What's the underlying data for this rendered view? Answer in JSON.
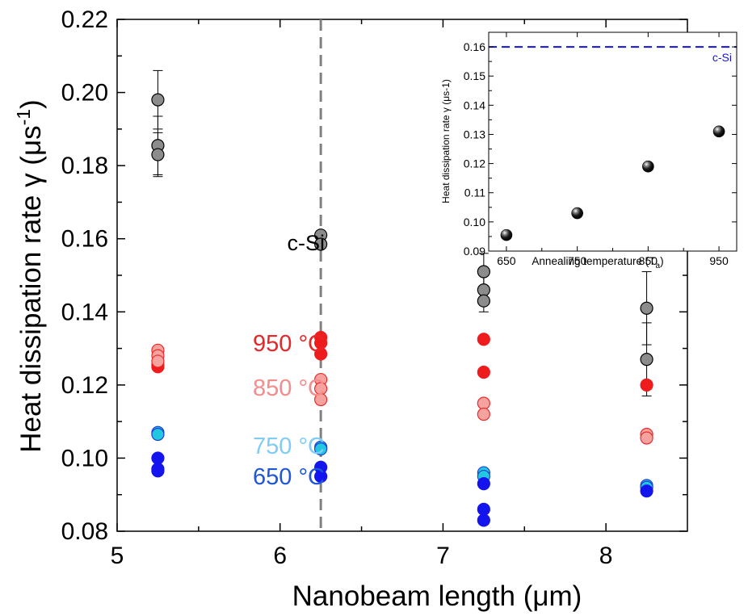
{
  "chart_data": [
    {
      "type": "scatter",
      "title": "",
      "xlabel": "Nanobeam length (μm)",
      "ylabel_main": "Heat dissipation rate γ (μs",
      "ylabel_sup": "-1",
      "ylabel_close": ")",
      "xlim": [
        5.0,
        8.5
      ],
      "ylim": [
        0.08,
        0.22
      ],
      "xticks": [
        5,
        6,
        7,
        8
      ],
      "yticks": [
        "0.08",
        "0.10",
        "0.12",
        "0.14",
        "0.16",
        "0.18",
        "0.20",
        "0.22"
      ],
      "reference_line_x": 6.25,
      "annotations": [
        {
          "text": "c-Si",
          "color": "#000000"
        },
        {
          "text": "950 °C",
          "color": "#e8262a"
        },
        {
          "text": "850 °C",
          "color": "#f48c8c"
        },
        {
          "text": "750 °C",
          "color": "#7fcdf5"
        },
        {
          "text": "650 °C",
          "color": "#1f57d6"
        }
      ],
      "series": [
        {
          "fill": "#8c8c8c",
          "stroke": "#000000",
          "points": [
            [
              5.25,
              0.198
            ],
            [
              5.25,
              0.1855
            ],
            [
              5.25,
              0.183
            ],
            [
              6.25,
              0.161
            ],
            [
              6.25,
              0.1585
            ],
            [
              7.25,
              0.151
            ],
            [
              7.25,
              0.146
            ],
            [
              7.25,
              0.143
            ],
            [
              8.25,
              0.141
            ],
            [
              8.25,
              0.127
            ]
          ],
          "error_bars": [
            [
              5.25,
              0.198,
              0.008
            ],
            [
              5.25,
              0.1855,
              0.008
            ],
            [
              5.25,
              0.183,
              0.006
            ],
            [
              7.25,
              0.151,
              0.005
            ],
            [
              7.25,
              0.146,
              0.006
            ],
            [
              8.25,
              0.141,
              0.01
            ],
            [
              8.25,
              0.127,
              0.01
            ]
          ]
        },
        {
          "fill": "#ee1c1c",
          "stroke": "#ee1c1c",
          "points": [
            [
              5.25,
              0.1255
            ],
            [
              5.25,
              0.125
            ],
            [
              6.25,
              0.133
            ],
            [
              6.25,
              0.1315
            ],
            [
              6.25,
              0.1285
            ],
            [
              7.25,
              0.1325
            ],
            [
              7.25,
              0.1235
            ],
            [
              8.25,
              0.12
            ]
          ]
        },
        {
          "fill": "#f6a3a0",
          "stroke": "#ea2a2a",
          "points": [
            [
              5.25,
              0.1295
            ],
            [
              5.25,
              0.128
            ],
            [
              5.25,
              0.1265
            ],
            [
              6.25,
              0.1215
            ],
            [
              6.25,
              0.119
            ],
            [
              6.25,
              0.116
            ],
            [
              7.25,
              0.115
            ],
            [
              7.25,
              0.112
            ],
            [
              8.25,
              0.1065
            ],
            [
              8.25,
              0.1055
            ]
          ]
        },
        {
          "fill": "#22c8e0",
          "stroke": "#1f3fd6",
          "points": [
            [
              5.25,
              0.107
            ],
            [
              5.25,
              0.1065
            ],
            [
              6.25,
              0.103
            ],
            [
              6.25,
              0.1025
            ],
            [
              7.25,
              0.096
            ],
            [
              7.25,
              0.095
            ],
            [
              8.25,
              0.0925
            ],
            [
              8.25,
              0.092
            ]
          ]
        },
        {
          "fill": "#1414ee",
          "stroke": "#1414ee",
          "points": [
            [
              5.25,
              0.1
            ],
            [
              5.25,
              0.097
            ],
            [
              5.25,
              0.0965
            ],
            [
              6.25,
              0.0975
            ],
            [
              6.25,
              0.095
            ],
            [
              7.25,
              0.093
            ],
            [
              7.25,
              0.086
            ],
            [
              7.25,
              0.083
            ],
            [
              8.25,
              0.091
            ]
          ]
        }
      ]
    },
    {
      "type": "scatter",
      "title": "",
      "xlabel_main": "Annealing temperature (T",
      "xlabel_sub": "a",
      "xlabel_close": ")",
      "ylabel": "Heat dissipation rate γ (μs-1)",
      "xlim": [
        625,
        975
      ],
      "ylim": [
        0.09,
        0.165
      ],
      "xticks": [
        650,
        750,
        850,
        950
      ],
      "yticks": [
        "0.09",
        "0.10",
        "0.11",
        "0.12",
        "0.13",
        "0.14",
        "0.15",
        "0.16"
      ],
      "reference_line_y": 0.16,
      "reference_label": "c-Si",
      "reference_color": "#1414d6",
      "series": [
        {
          "x": [
            650,
            750,
            850,
            950
          ],
          "y": [
            0.0955,
            0.103,
            0.119,
            0.131
          ],
          "color": "#000000"
        }
      ]
    }
  ]
}
